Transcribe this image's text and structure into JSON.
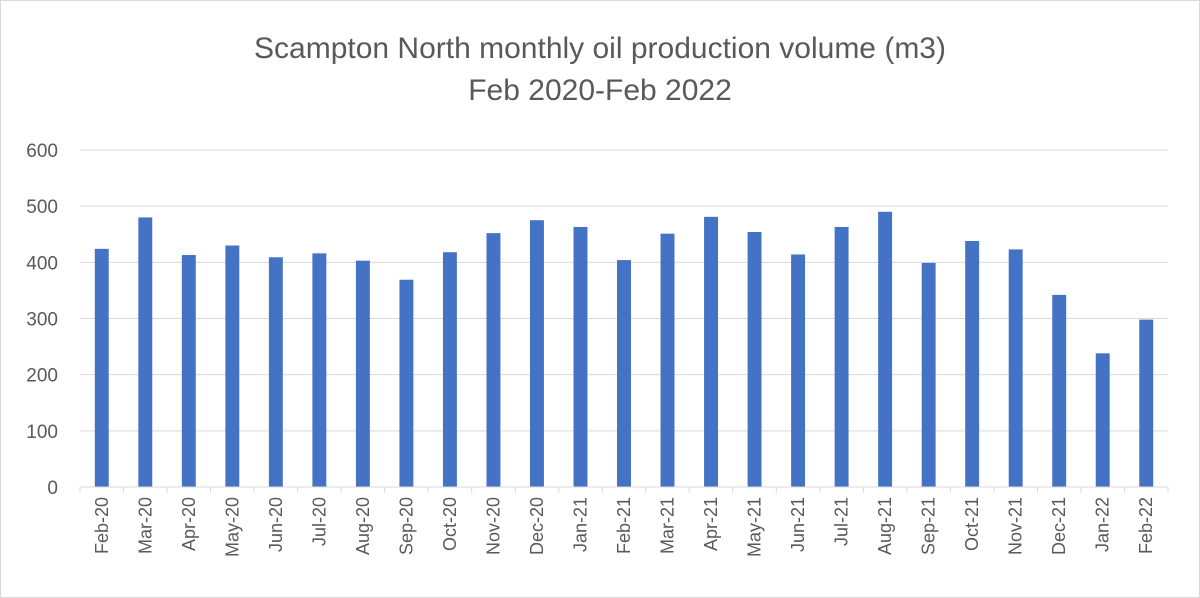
{
  "chart_data": {
    "type": "bar",
    "title": "Scampton North monthly oil production volume (m3)",
    "subtitle": "Feb 2020-Feb 2022",
    "xlabel": "",
    "ylabel": "",
    "ylim": [
      0,
      600
    ],
    "yticks": [
      0,
      100,
      200,
      300,
      400,
      500,
      600
    ],
    "grid": true,
    "legend": "none",
    "bar_color": "#4472C4",
    "categories": [
      "Feb-20",
      "Mar-20",
      "Apr-20",
      "May-20",
      "Jun-20",
      "Jul-20",
      "Aug-20",
      "Sep-20",
      "Oct-20",
      "Nov-20",
      "Dec-20",
      "Jan-21",
      "Feb-21",
      "Mar-21",
      "Apr-21",
      "May-21",
      "Jun-21",
      "Jul-21",
      "Aug-21",
      "Sep-21",
      "Oct-21",
      "Nov-21",
      "Dec-21",
      "Jan-22",
      "Feb-22"
    ],
    "values": [
      424,
      480,
      413,
      430,
      409,
      416,
      403,
      369,
      418,
      452,
      475,
      463,
      404,
      451,
      481,
      454,
      414,
      463,
      490,
      399,
      438,
      423,
      342,
      238,
      298
    ]
  }
}
